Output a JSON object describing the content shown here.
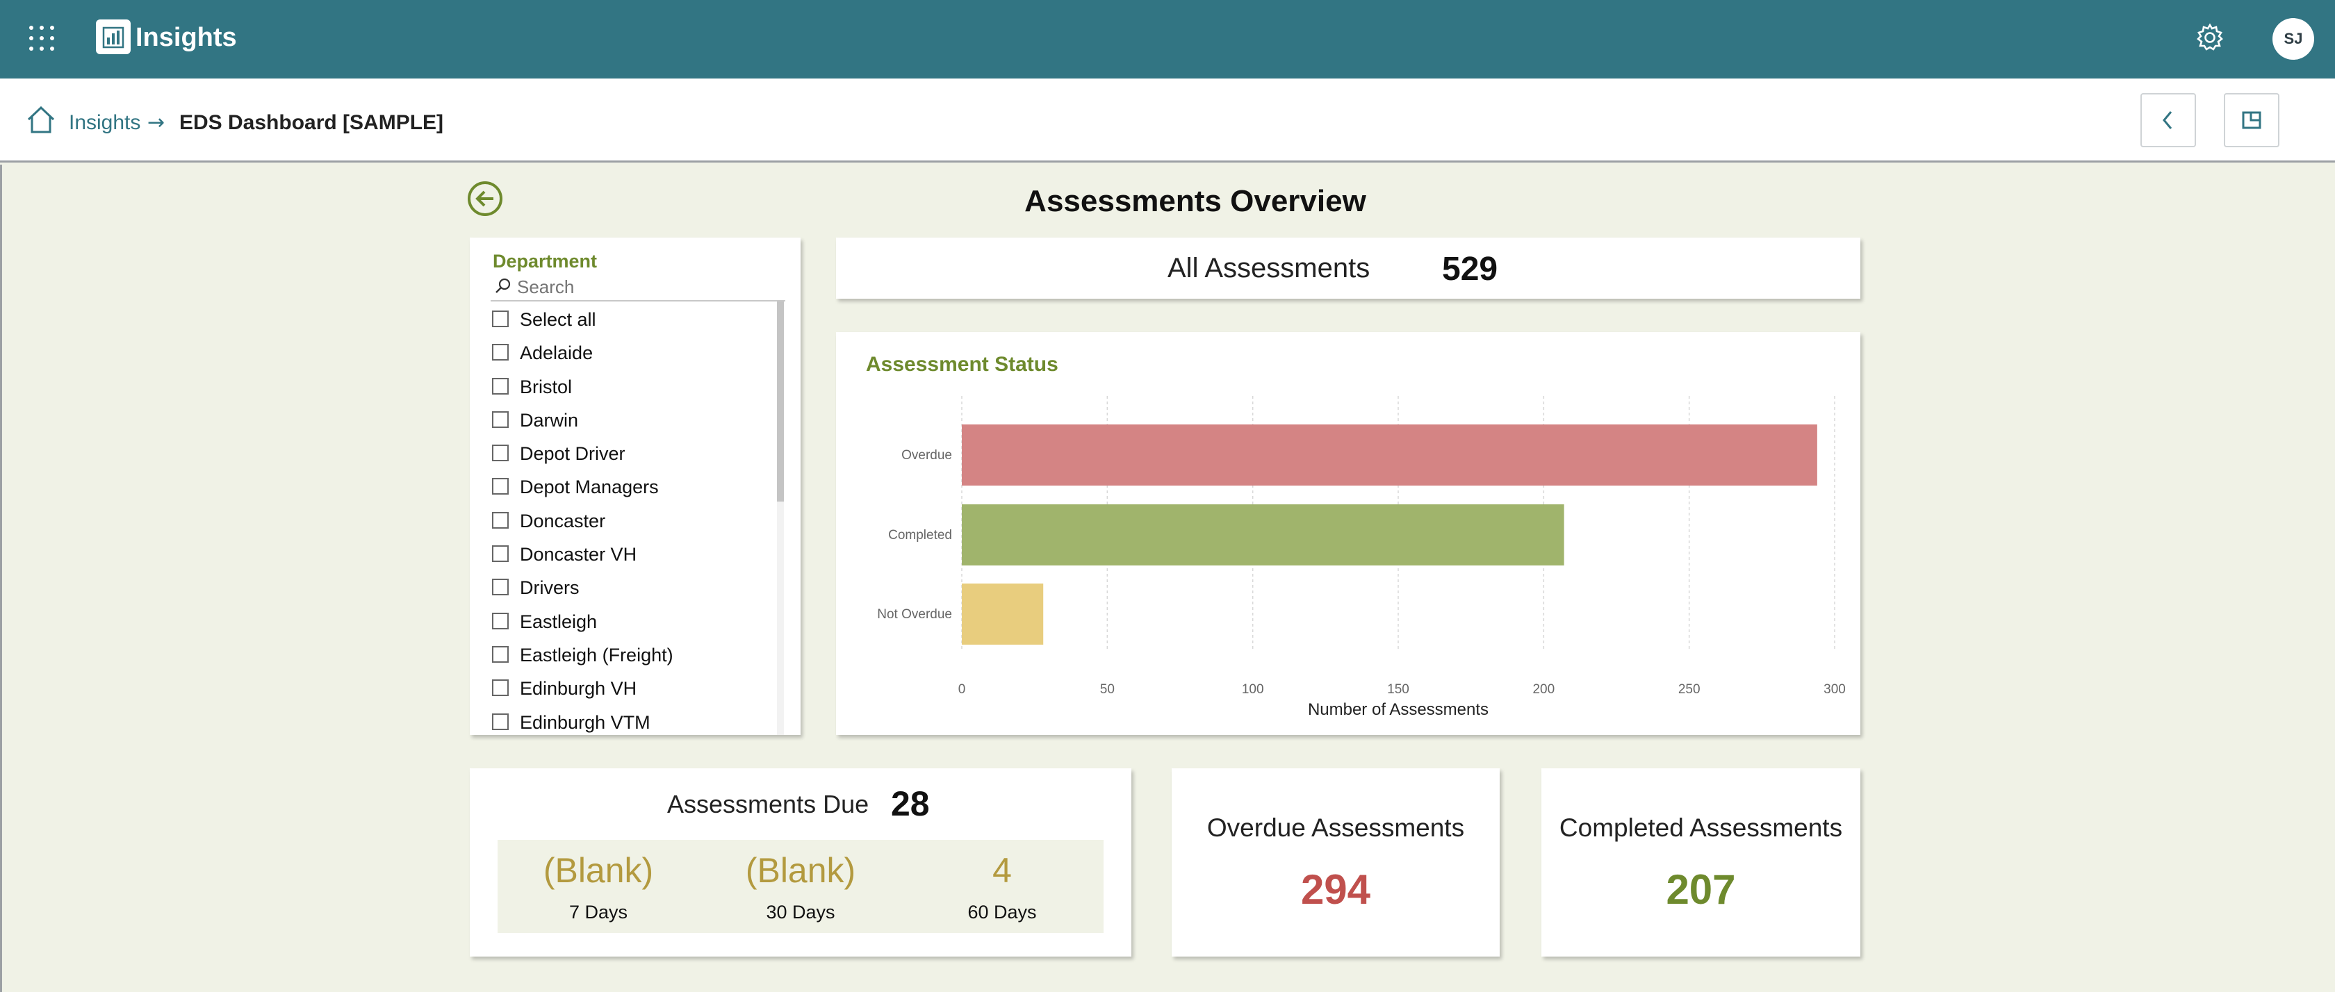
{
  "app": {
    "title": "Insights",
    "user_initials": "SJ"
  },
  "breadcrumb": {
    "home": "Insights",
    "current": "EDS Dashboard [SAMPLE]"
  },
  "page": {
    "title": "Assessments Overview"
  },
  "slicer": {
    "title": "Department",
    "search_placeholder": "Search",
    "items": [
      "Select all",
      "Adelaide",
      "Bristol",
      "Darwin",
      "Depot Driver",
      "Depot Managers",
      "Doncaster",
      "Doncaster VH",
      "Drivers",
      "Eastleigh",
      "Eastleigh (Freight)",
      "Edinburgh VH",
      "Edinburgh VTM"
    ]
  },
  "kpi_all": {
    "label": "All Assessments",
    "value": "529"
  },
  "chart_data": {
    "type": "bar",
    "orientation": "horizontal",
    "title": "Assessment Status",
    "categories": [
      "Overdue",
      "Completed",
      "Not Overdue"
    ],
    "values": [
      294,
      207,
      28
    ],
    "colors": [
      "#d48484",
      "#a0b46c",
      "#e8cd7e"
    ],
    "xlabel": "Number of Assessments",
    "ylabel": "",
    "xlim": [
      0,
      300
    ],
    "ticks": [
      0,
      50,
      100,
      150,
      200,
      250,
      300
    ],
    "grid": true
  },
  "due": {
    "label": "Assessments Due",
    "value": "28",
    "breakdown": [
      {
        "value": "(Blank)",
        "label": "7 Days"
      },
      {
        "value": "(Blank)",
        "label": "30 Days"
      },
      {
        "value": "4",
        "label": "60 Days"
      }
    ]
  },
  "overdue": {
    "label": "Overdue Assessments",
    "value": "294",
    "color": "#c0504d"
  },
  "completed": {
    "label": "Completed Assessments",
    "value": "207",
    "color": "#6e8a2d"
  },
  "colors": {
    "header": "#327583",
    "accent_green": "#6e8a2d",
    "due_gold": "#b39a3f",
    "canvas_bg": "#f0f2e6"
  }
}
